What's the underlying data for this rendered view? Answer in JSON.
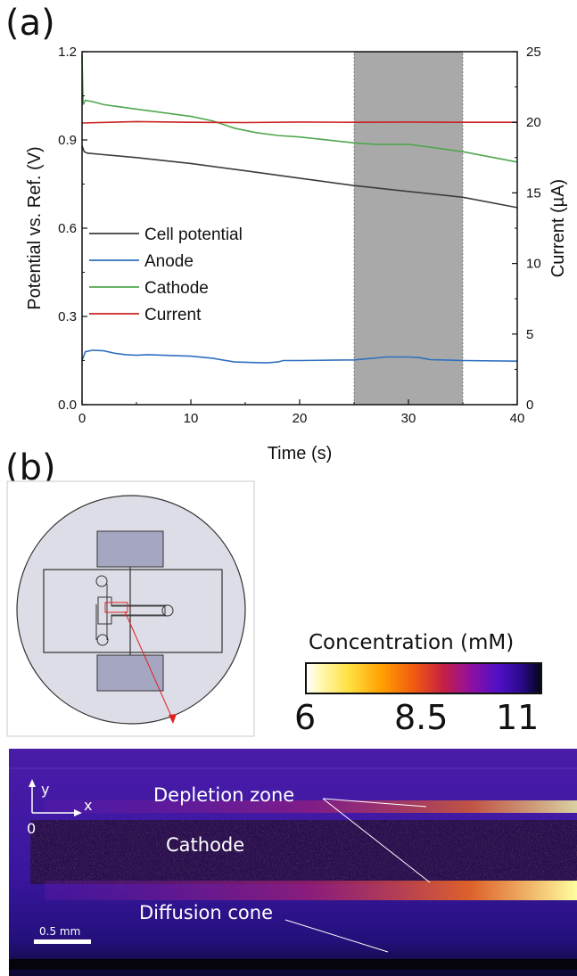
{
  "panels": {
    "a": "(a)",
    "b": "(b)"
  },
  "chart_data": {
    "type": "line",
    "xlabel": "Time (s)",
    "ylabel_left": "Potential vs. Ref. (V)",
    "ylabel_right": "Current (µA)",
    "xlim": [
      0,
      40
    ],
    "ylim_left": [
      0,
      1.2
    ],
    "ylim_right": [
      0,
      25
    ],
    "x_ticks": [
      "0",
      "10",
      "20",
      "30",
      "40"
    ],
    "y_left_ticks": [
      "0.0",
      "0.3",
      "0.6",
      "0.9",
      "1.2"
    ],
    "y_right_ticks": [
      "0",
      "5",
      "10",
      "15",
      "20",
      "25"
    ],
    "grid": false,
    "legend_position": "middle-left",
    "shaded_region": {
      "x_range": [
        25,
        35
      ],
      "color": "#a9a9a9"
    },
    "series": [
      {
        "name": "Cell potential",
        "axis": "left",
        "color": "#3c3c3c",
        "x": [
          0,
          0.2,
          0.5,
          2,
          5,
          10,
          15,
          20,
          25,
          30,
          35,
          40
        ],
        "y": [
          0.88,
          0.86,
          0.855,
          0.85,
          0.84,
          0.82,
          0.795,
          0.77,
          0.745,
          0.725,
          0.705,
          0.67
        ]
      },
      {
        "name": "Anode",
        "axis": "left",
        "color": "#2f6fbf",
        "x": [
          0,
          0.3,
          1,
          2,
          3,
          4,
          5,
          6,
          10,
          12,
          14,
          16,
          17,
          18,
          18.5,
          20,
          25,
          28,
          30,
          31,
          32,
          35,
          40
        ],
        "y": [
          0.15,
          0.18,
          0.185,
          0.183,
          0.175,
          0.17,
          0.168,
          0.17,
          0.165,
          0.158,
          0.145,
          0.143,
          0.142,
          0.145,
          0.15,
          0.15,
          0.152,
          0.162,
          0.162,
          0.16,
          0.153,
          0.15,
          0.148
        ]
      },
      {
        "name": "Cathode",
        "axis": "left",
        "color": "#4fa64f",
        "x": [
          0,
          0.1,
          0.3,
          1,
          2,
          3,
          5,
          8,
          10,
          12,
          14,
          16,
          18,
          20,
          25,
          27,
          30,
          32,
          35,
          40
        ],
        "y": [
          1.19,
          1.02,
          1.035,
          1.03,
          1.02,
          1.015,
          1.005,
          0.99,
          0.98,
          0.965,
          0.94,
          0.925,
          0.915,
          0.91,
          0.89,
          0.885,
          0.885,
          0.875,
          0.86,
          0.825
        ]
      },
      {
        "name": "Current",
        "axis": "right",
        "color": "#cc2222",
        "x": [
          0,
          5,
          10,
          15,
          20,
          25,
          30,
          35,
          40
        ],
        "y": [
          19.95,
          20.05,
          20.0,
          19.98,
          20.02,
          20.0,
          20.02,
          20.0,
          20.0
        ]
      }
    ]
  },
  "colorbar": {
    "title": "Concentration (mM)",
    "min_label": "6",
    "mid_label": "8.5",
    "max_label": "11"
  },
  "image_annotations": {
    "depletion": "Depletion zone",
    "cathode": "Cathode",
    "diffusion": "Diffusion cone",
    "y_axis": "y",
    "x_axis": "x",
    "origin": "0",
    "scalebar": "0.5 mm"
  }
}
